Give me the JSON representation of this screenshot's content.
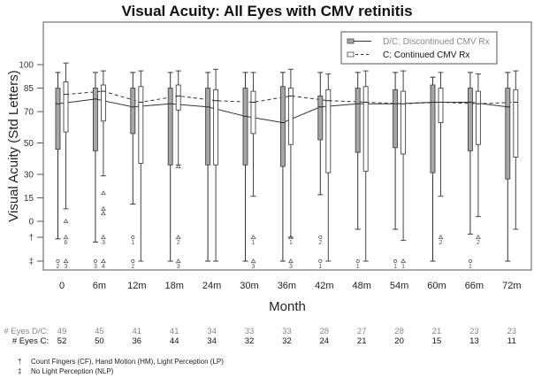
{
  "chart_data": {
    "type": "boxplot",
    "title": "Visual Acuity: All Eyes with CMV retinitis",
    "xlabel": "Month",
    "ylabel": "Visual Acuity (Std Letters)",
    "categories": [
      "0",
      "6m",
      "12m",
      "18m",
      "24m",
      "30m",
      "36m",
      "42m",
      "48m",
      "54m",
      "60m",
      "66m",
      "72m"
    ],
    "yticks": [
      {
        "label": "100",
        "value": 100
      },
      {
        "label": "85",
        "value": 85
      },
      {
        "label": "70",
        "value": 70
      },
      {
        "label": "50",
        "value": 50
      },
      {
        "label": "30",
        "value": 30
      },
      {
        "label": "15",
        "value": 15
      },
      {
        "label": "0",
        "value": 0
      },
      {
        "label": "†",
        "value": -10
      },
      {
        "label": "‡",
        "value": -25
      }
    ],
    "ylim": [
      -29,
      118
    ],
    "legend": {
      "position": "top-right",
      "entries": [
        {
          "name": "D/C: Discontinued CMV Rx",
          "style": "solid",
          "fill": "#a6a6a6"
        },
        {
          "name": "C: Continued CMV Rx",
          "style": "dashed",
          "fill": "#ffffff"
        }
      ]
    },
    "series": [
      {
        "name": "D/C: Discontinued CMV Rx",
        "color": "#a6a6a6",
        "line_color": "#333333",
        "boxes": [
          {
            "whislo": -11,
            "q1": 46,
            "med": 75,
            "q3": 85,
            "whishi": 95
          },
          {
            "whislo": -13,
            "q1": 45,
            "med": 78,
            "q3": 85,
            "whishi": 95
          },
          {
            "whislo": 11,
            "q1": 56,
            "med": 73,
            "q3": 85,
            "whishi": 95
          },
          {
            "whislo": -25,
            "q1": 36,
            "med": 75,
            "q3": 85,
            "whishi": 95
          },
          {
            "whislo": -25,
            "q1": 36,
            "med": 73,
            "q3": 85,
            "whishi": 95
          },
          {
            "whislo": -25,
            "q1": 36,
            "med": 67,
            "q3": 85,
            "whishi": 95
          },
          {
            "whislo": -25,
            "q1": 35,
            "med": 63,
            "q3": 86,
            "whishi": 95
          },
          {
            "whislo": 17,
            "q1": 52,
            "med": 73,
            "q3": 80,
            "whishi": 95
          },
          {
            "whislo": -5,
            "q1": 44,
            "med": 75,
            "q3": 85,
            "whishi": 95
          },
          {
            "whislo": -5,
            "q1": 47,
            "med": 75,
            "q3": 84,
            "whishi": 95
          },
          {
            "whislo": -25,
            "q1": 31,
            "med": 76,
            "q3": 87,
            "whishi": 92
          },
          {
            "whislo": -8,
            "q1": 45,
            "med": 76,
            "q3": 85,
            "whishi": 95
          },
          {
            "whislo": -25,
            "q1": 27,
            "med": 73,
            "q3": 85,
            "whishi": 95
          }
        ],
        "outliers": [
          {
            "cat": "0",
            "value": -25,
            "count": 2,
            "shape": "circle"
          },
          {
            "cat": "6m",
            "value": -25,
            "count": 3,
            "shape": "circle"
          },
          {
            "cat": "12m",
            "value": -10,
            "count": 1,
            "shape": "circle"
          },
          {
            "cat": "12m",
            "value": -25,
            "count": 2,
            "shape": "circle"
          },
          {
            "cat": "42m",
            "value": -10,
            "count": 2,
            "shape": "circle"
          },
          {
            "cat": "42m",
            "value": -25,
            "count": 1,
            "shape": "circle"
          },
          {
            "cat": "48m",
            "value": -25,
            "count": 1,
            "shape": "circle"
          },
          {
            "cat": "54m",
            "value": -25,
            "count": 1,
            "shape": "circle"
          },
          {
            "cat": "66m",
            "value": -25,
            "count": 1,
            "shape": "circle"
          }
        ]
      },
      {
        "name": "C: Continued CMV Rx",
        "color": "#ffffff",
        "line_color": "#333333",
        "boxes": [
          {
            "whislo": 8,
            "q1": 57,
            "med": 81,
            "q3": 89,
            "whishi": 101
          },
          {
            "whislo": 29,
            "q1": 64,
            "med": 83,
            "q3": 87,
            "whishi": 96
          },
          {
            "whislo": -25,
            "q1": 37,
            "med": 76,
            "q3": 86,
            "whishi": 96
          },
          {
            "whislo": 36,
            "q1": 71,
            "med": 80,
            "q3": 87,
            "whishi": 96
          },
          {
            "whislo": -25,
            "q1": 36,
            "med": 77,
            "q3": 84,
            "whishi": 97
          },
          {
            "whislo": 16,
            "q1": 56,
            "med": 76,
            "q3": 83,
            "whishi": 95
          },
          {
            "whislo": -10,
            "q1": 49,
            "med": 80,
            "q3": 85,
            "whishi": 97
          },
          {
            "whislo": -25,
            "q1": 31,
            "med": 77,
            "q3": 84,
            "whishi": 94
          },
          {
            "whislo": -25,
            "q1": 32,
            "med": 76,
            "q3": 86,
            "whishi": 96
          },
          {
            "whislo": -12,
            "q1": 43,
            "med": 75,
            "q3": 83,
            "whishi": 96
          },
          {
            "whislo": 16,
            "q1": 63,
            "med": 76,
            "q3": 85,
            "whishi": 95
          },
          {
            "whislo": 3,
            "q1": 49,
            "med": 75,
            "q3": 83,
            "whishi": 94
          },
          {
            "whislo": -5,
            "q1": 41,
            "med": 76,
            "q3": 84,
            "whishi": 96
          }
        ],
        "outliers": [
          {
            "cat": "0",
            "value": 0,
            "count": 1,
            "shape": "triangle"
          },
          {
            "cat": "0",
            "value": -10,
            "count": 6,
            "shape": "triangle"
          },
          {
            "cat": "0",
            "value": -25,
            "count": 3,
            "shape": "triangle"
          },
          {
            "cat": "6m",
            "value": 18,
            "count": 1,
            "shape": "triangle"
          },
          {
            "cat": "6m",
            "value": 8,
            "count": 1,
            "shape": "triangle"
          },
          {
            "cat": "6m",
            "value": 5,
            "count": 1,
            "shape": "triangle"
          },
          {
            "cat": "6m",
            "value": -10,
            "count": 3,
            "shape": "triangle"
          },
          {
            "cat": "6m",
            "value": -25,
            "count": 4,
            "shape": "triangle"
          },
          {
            "cat": "18m",
            "value": 35,
            "count": 1,
            "shape": "triangle"
          },
          {
            "cat": "18m",
            "value": -10,
            "count": 2,
            "shape": "triangle"
          },
          {
            "cat": "18m",
            "value": -25,
            "count": 3,
            "shape": "triangle"
          },
          {
            "cat": "30m",
            "value": -10,
            "count": 1,
            "shape": "triangle"
          },
          {
            "cat": "30m",
            "value": -25,
            "count": 3,
            "shape": "triangle"
          },
          {
            "cat": "36m",
            "value": -10,
            "count": 1,
            "shape": "triangle"
          },
          {
            "cat": "36m",
            "value": -25,
            "count": 3,
            "shape": "triangle"
          },
          {
            "cat": "54m",
            "value": -25,
            "count": 1,
            "shape": "triangle"
          },
          {
            "cat": "60m",
            "value": -10,
            "count": 2,
            "shape": "triangle"
          },
          {
            "cat": "66m",
            "value": -10,
            "count": 2,
            "shape": "triangle"
          }
        ]
      }
    ],
    "eyes_counts": {
      "dc_label": "# Eyes D/C:",
      "c_label": "# Eyes C:",
      "dc": [
        "49",
        "45",
        "41",
        "41",
        "34",
        "33",
        "33",
        "28",
        "27",
        "28",
        "21",
        "23",
        "23"
      ],
      "c": [
        "52",
        "50",
        "36",
        "44",
        "34",
        "32",
        "32",
        "24",
        "21",
        "20",
        "15",
        "13",
        "11"
      ]
    },
    "footnotes": [
      {
        "symbol": "†",
        "text": "Count Fingers (CF), Hand Motion (HM), Light Perception (LP)"
      },
      {
        "symbol": "‡",
        "text": "No Light Perception (NLP)"
      }
    ]
  }
}
